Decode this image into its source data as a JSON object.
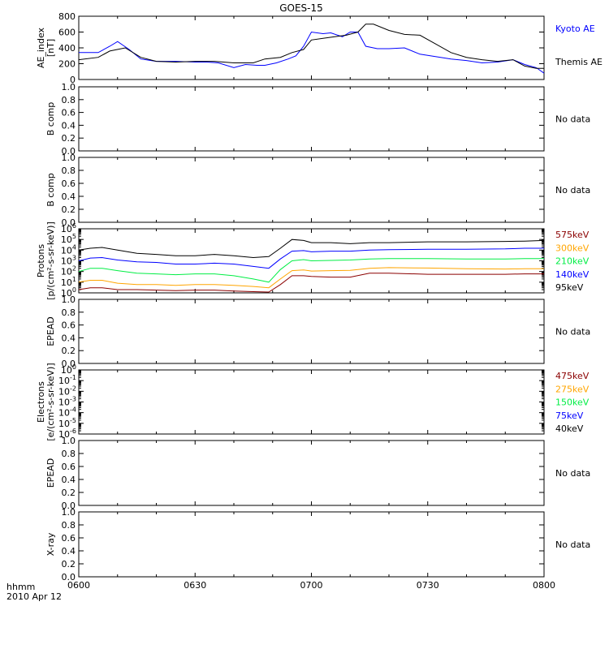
{
  "title": "GOES-15",
  "footer": {
    "time_label": "hhmm",
    "date_label": "2010 Apr 12"
  },
  "x_axis": {
    "range": [
      "0600",
      "0800"
    ],
    "ticks": [
      "0600",
      "0630",
      "0700",
      "0730",
      "0800"
    ]
  },
  "chart_data": [
    {
      "type": "line",
      "ylabel": [
        "AE_index",
        "[nT]"
      ],
      "yscale": "linear",
      "ylim": [
        0,
        800
      ],
      "yticks": [
        "0",
        "200",
        "400",
        "600",
        "800"
      ],
      "legend_placement": "right",
      "series": [
        {
          "name": "Kyoto AE",
          "color": "#0000ff",
          "x": [
            "0600",
            "0605",
            "0608",
            "0610",
            "0613",
            "0616",
            "0620",
            "0625",
            "0630",
            "0633",
            "0636",
            "0640",
            "0643",
            "0646",
            "0648",
            "0651",
            "0654",
            "0656",
            "0658",
            "0700",
            "0703",
            "0705",
            "0708",
            "0710",
            "0712",
            "0714",
            "0717",
            "0720",
            "0724",
            "0728",
            "0732",
            "0736",
            "0740",
            "0744",
            "0748",
            "0752",
            "0755",
            "0758",
            "0800"
          ],
          "y": [
            340,
            340,
            420,
            480,
            380,
            260,
            230,
            230,
            220,
            220,
            210,
            150,
            190,
            180,
            180,
            210,
            260,
            300,
            420,
            600,
            580,
            590,
            540,
            600,
            600,
            420,
            390,
            390,
            400,
            320,
            290,
            260,
            240,
            210,
            220,
            250,
            190,
            150,
            80
          ]
        },
        {
          "name": "Themis AE",
          "color": "#000000",
          "x": [
            "0600",
            "0605",
            "0608",
            "0612",
            "0616",
            "0620",
            "0625",
            "0630",
            "0635",
            "0640",
            "0645",
            "0648",
            "0652",
            "0655",
            "0658",
            "0700",
            "0703",
            "0706",
            "0709",
            "0712",
            "0714",
            "0716",
            "0720",
            "0724",
            "0728",
            "0732",
            "0736",
            "0740",
            "0744",
            "0748",
            "0752",
            "0755",
            "0758",
            "0800"
          ],
          "y": [
            250,
            280,
            360,
            400,
            280,
            230,
            220,
            230,
            230,
            210,
            210,
            260,
            280,
            340,
            380,
            500,
            520,
            540,
            560,
            600,
            700,
            700,
            620,
            570,
            560,
            450,
            340,
            280,
            250,
            230,
            250,
            170,
            140,
            140
          ]
        }
      ]
    },
    {
      "type": "line",
      "ylabel": [
        "B comp"
      ],
      "ylim": [
        0.0,
        1.0
      ],
      "yticks": [
        "0.0",
        "0.2",
        "0.4",
        "0.6",
        "0.8",
        "1.0"
      ],
      "status": "No data",
      "series": []
    },
    {
      "type": "line",
      "ylabel": [
        "B comp"
      ],
      "ylim": [
        0.0,
        1.0
      ],
      "yticks": [
        "0.0",
        "0.2",
        "0.4",
        "0.6",
        "0.8",
        "1.0"
      ],
      "status": "No data",
      "series": []
    },
    {
      "type": "line",
      "ylabel": [
        "Protons",
        "[p/(cm²-s-sr-keV)]"
      ],
      "yscale": "log",
      "ylim": [
        1,
        1000000
      ],
      "yticks": [
        {
          "base": "10",
          "exp": "0"
        },
        {
          "base": "10",
          "exp": "1"
        },
        {
          "base": "10",
          "exp": "2"
        },
        {
          "base": "10",
          "exp": "3"
        },
        {
          "base": "10",
          "exp": "4"
        },
        {
          "base": "10",
          "exp": "5"
        },
        {
          "base": "10",
          "exp": "6"
        }
      ],
      "legend_placement": "right",
      "series": [
        {
          "name": "575keV",
          "color": "#8b0000",
          "x": [
            "0600",
            "0603",
            "0606",
            "0610",
            "0615",
            "0620",
            "0625",
            "0630",
            "0635",
            "0640",
            "0645",
            "0649",
            "0652",
            "0655",
            "0658",
            "0700",
            "0705",
            "0710",
            "0715",
            "0720",
            "0730",
            "0740",
            "0750",
            "0755",
            "0800"
          ],
          "y": [
            2,
            3,
            3,
            2,
            2,
            1.8,
            1.6,
            1.8,
            1.8,
            1.5,
            1.3,
            1.2,
            6,
            40,
            40,
            35,
            30,
            30,
            70,
            70,
            55,
            55,
            55,
            60,
            60
          ]
        },
        {
          "name": "300keV",
          "color": "#ffa500",
          "x": [
            "0600",
            "0603",
            "0606",
            "0610",
            "0615",
            "0620",
            "0625",
            "0630",
            "0635",
            "0640",
            "0645",
            "0649",
            "0652",
            "0655",
            "0658",
            "0700",
            "0705",
            "0710",
            "0715",
            "0720",
            "0730",
            "0740",
            "0750",
            "0755",
            "0800"
          ],
          "y": [
            10,
            15,
            15,
            8,
            6,
            6,
            5,
            6,
            6,
            5,
            4,
            3,
            20,
            120,
            140,
            110,
            120,
            130,
            200,
            230,
            210,
            180,
            170,
            180,
            180
          ]
        },
        {
          "name": "210keV",
          "color": "#00ee44",
          "x": [
            "0600",
            "0603",
            "0606",
            "0610",
            "0615",
            "0620",
            "0625",
            "0630",
            "0635",
            "0640",
            "0645",
            "0649",
            "0652",
            "0655",
            "0658",
            "0700",
            "0705",
            "0710",
            "0715",
            "0720",
            "0730",
            "0740",
            "0750",
            "0755",
            "0800"
          ],
          "y": [
            100,
            200,
            200,
            120,
            70,
            60,
            50,
            60,
            60,
            40,
            20,
            10,
            150,
            1000,
            1300,
            1000,
            1100,
            1200,
            1500,
            1600,
            1600,
            1500,
            1500,
            1600,
            1600
          ]
        },
        {
          "name": "140keV",
          "color": "#0000ff",
          "x": [
            "0600",
            "0603",
            "0606",
            "0610",
            "0615",
            "0620",
            "0625",
            "0630",
            "0635",
            "0640",
            "0645",
            "0649",
            "0652",
            "0655",
            "0658",
            "0700",
            "0705",
            "0710",
            "0715",
            "0720",
            "0730",
            "0740",
            "0750",
            "0755",
            "0800"
          ],
          "y": [
            1000,
            1800,
            2000,
            1200,
            800,
            700,
            500,
            500,
            600,
            500,
            300,
            200,
            1500,
            8000,
            9000,
            7000,
            8000,
            8000,
            10000,
            11000,
            12000,
            12000,
            13000,
            15000,
            15000
          ]
        },
        {
          "name": "95keV",
          "color": "#000000",
          "x": [
            "0600",
            "0603",
            "0606",
            "0610",
            "0615",
            "0620",
            "0625",
            "0630",
            "0635",
            "0640",
            "0645",
            "0649",
            "0652",
            "0655",
            "0658",
            "0700",
            "0705",
            "0710",
            "0715",
            "0720",
            "0730",
            "0740",
            "0750",
            "0755",
            "0800"
          ],
          "y": [
            10000,
            15000,
            18000,
            10000,
            5000,
            4000,
            3000,
            3000,
            4000,
            3000,
            2000,
            2500,
            15000,
            100000,
            80000,
            50000,
            50000,
            40000,
            50000,
            50000,
            60000,
            60000,
            65000,
            70000,
            80000
          ]
        }
      ]
    },
    {
      "type": "line",
      "ylabel": [
        "EPEAD"
      ],
      "ylim": [
        0.0,
        1.0
      ],
      "yticks": [
        "0.0",
        "0.2",
        "0.4",
        "0.6",
        "0.8",
        "1.0"
      ],
      "status": "No data",
      "series": []
    },
    {
      "type": "line",
      "ylabel": [
        "Electrons",
        "[e/(cm²-s-sr-keV)]"
      ],
      "yscale": "log",
      "ylim": [
        1e-06,
        1
      ],
      "yticks": [
        {
          "base": "10",
          "exp": "-6"
        },
        {
          "base": "10",
          "exp": "-5"
        },
        {
          "base": "10",
          "exp": "-4"
        },
        {
          "base": "10",
          "exp": "-3"
        },
        {
          "base": "10",
          "exp": "-2"
        },
        {
          "base": "10",
          "exp": "-1"
        },
        {
          "base": "10",
          "exp": "0"
        }
      ],
      "legend_placement": "right",
      "legend": [
        {
          "name": "475keV",
          "color": "#8b0000"
        },
        {
          "name": "275keV",
          "color": "#ffa500"
        },
        {
          "name": "150keV",
          "color": "#00ee44"
        },
        {
          "name": "75keV",
          "color": "#0000ff"
        },
        {
          "name": "40keV",
          "color": "#000000"
        }
      ],
      "series": []
    },
    {
      "type": "line",
      "ylabel": [
        "EPEAD"
      ],
      "ylim": [
        0.0,
        1.0
      ],
      "yticks": [
        "0.0",
        "0.2",
        "0.4",
        "0.6",
        "0.8",
        "1.0"
      ],
      "status": "No data",
      "series": []
    },
    {
      "type": "line",
      "ylabel": [
        "X-ray"
      ],
      "ylim": [
        0.0,
        1.0
      ],
      "yticks": [
        "0.0",
        "0.2",
        "0.4",
        "0.6",
        "0.8",
        "1.0"
      ],
      "status": "No data",
      "series": []
    }
  ]
}
